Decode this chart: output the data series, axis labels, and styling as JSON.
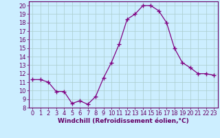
{
  "x": [
    0,
    1,
    2,
    3,
    4,
    5,
    6,
    7,
    8,
    9,
    10,
    11,
    12,
    13,
    14,
    15,
    16,
    17,
    18,
    19,
    20,
    21,
    22,
    23
  ],
  "y": [
    11.3,
    11.3,
    11.0,
    9.9,
    9.9,
    8.5,
    8.8,
    8.4,
    9.3,
    11.5,
    13.3,
    15.5,
    18.4,
    19.0,
    20.0,
    20.0,
    19.4,
    18.0,
    15.0,
    13.3,
    12.7,
    12.0,
    12.0,
    11.8
  ],
  "line_color": "#800080",
  "marker": "P",
  "marker_size": 2.5,
  "bg_color": "#cceeff",
  "grid_color": "#aacccc",
  "xlabel": "Windchill (Refroidissement éolien,°C)",
  "xlabel_color": "#660066",
  "tick_color": "#660066",
  "xlim": [
    -0.5,
    23.5
  ],
  "ylim": [
    8,
    20.5
  ],
  "yticks": [
    8,
    9,
    10,
    11,
    12,
    13,
    14,
    15,
    16,
    17,
    18,
    19,
    20
  ],
  "xticks": [
    0,
    1,
    2,
    3,
    4,
    5,
    6,
    7,
    8,
    9,
    10,
    11,
    12,
    13,
    14,
    15,
    16,
    17,
    18,
    19,
    20,
    21,
    22,
    23
  ],
  "spine_color": "#660066",
  "tick_fontsize": 6.0,
  "xlabel_fontsize": 6.5
}
